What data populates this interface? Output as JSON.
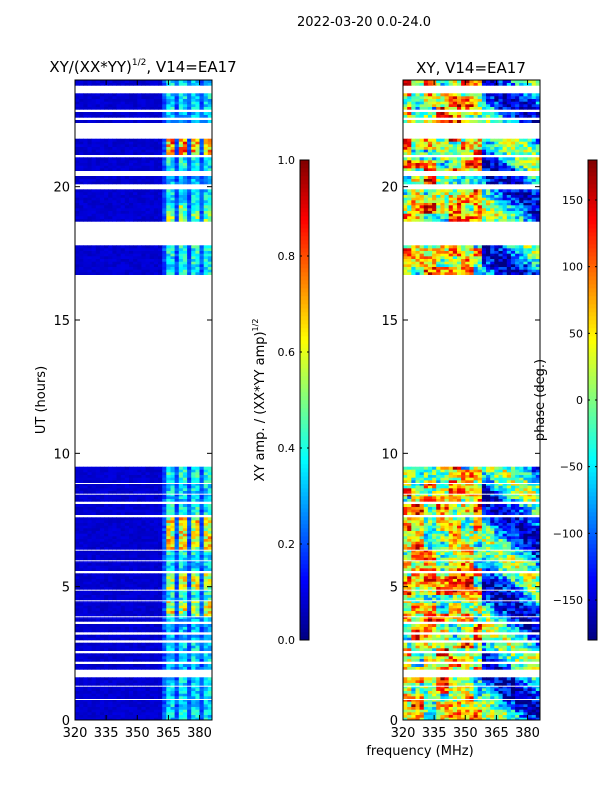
{
  "chart_data": [
    {
      "type": "heatmap",
      "suptitle": "2022-03-20 0.0-24.0",
      "title": "XY/(XX*YY)^1/2, V14=EA17",
      "title_main": "XY/(XX*YY)",
      "title_sup": "1/2",
      "title_tail": ", V14=EA17",
      "ylabel": "UT (hours)",
      "xlim": [
        320,
        386
      ],
      "ylim": [
        0,
        24
      ],
      "xticks": [
        "320",
        "335",
        "350",
        "365",
        "380"
      ],
      "xtick_values": [
        320,
        335,
        350,
        365,
        380
      ],
      "yticks": [
        "0",
        "5",
        "10",
        "15",
        "20"
      ],
      "ytick_values": [
        0,
        5,
        10,
        15,
        20
      ],
      "colorbar": {
        "label": "XY amp. / (XX*YY amp)",
        "label_sup": "1/2",
        "range": [
          0,
          1
        ],
        "ticks": [
          "0.0",
          "0.2",
          "0.4",
          "0.6",
          "0.8",
          "1.0"
        ],
        "tick_values": [
          0,
          0.2,
          0.4,
          0.6,
          0.8,
          1.0
        ]
      },
      "signal_band_mhz": [
        361,
        385
      ],
      "background_amp": 0.06,
      "time_blocks": [
        {
          "start": 23.8,
          "end": 24.0,
          "peak_amp": 0.45
        },
        {
          "start": 22.9,
          "end": 23.5,
          "peak_amp": 0.45
        },
        {
          "start": 22.6,
          "end": 22.8,
          "peak_amp": 0.4
        },
        {
          "start": 22.4,
          "end": 22.5,
          "peak_amp": 0.4
        },
        {
          "start": 21.2,
          "end": 21.8,
          "peak_amp": 0.9
        },
        {
          "start": 20.6,
          "end": 21.1,
          "peak_amp": 0.5
        },
        {
          "start": 20.1,
          "end": 20.4,
          "peak_amp": 0.4
        },
        {
          "start": 19.3,
          "end": 19.9,
          "peak_amp": 0.45
        },
        {
          "start": 18.7,
          "end": 19.3,
          "peak_amp": 0.65
        },
        {
          "start": 16.7,
          "end": 17.8,
          "peak_amp": 0.5
        },
        {
          "start": 8.9,
          "end": 9.5,
          "peak_amp": 0.5
        },
        {
          "start": 8.5,
          "end": 8.85,
          "peak_amp": 0.45
        },
        {
          "start": 8.2,
          "end": 8.45,
          "peak_amp": 0.45
        },
        {
          "start": 7.7,
          "end": 8.1,
          "peak_amp": 0.5
        },
        {
          "start": 6.4,
          "end": 7.6,
          "peak_amp": 0.8
        },
        {
          "start": 6.0,
          "end": 6.35,
          "peak_amp": 0.5
        },
        {
          "start": 5.6,
          "end": 5.95,
          "peak_amp": 0.45
        },
        {
          "start": 4.9,
          "end": 5.5,
          "peak_amp": 0.75
        },
        {
          "start": 4.5,
          "end": 4.85,
          "peak_amp": 0.5
        },
        {
          "start": 3.9,
          "end": 4.45,
          "peak_amp": 0.75
        },
        {
          "start": 3.7,
          "end": 3.85,
          "peak_amp": 0.4
        },
        {
          "start": 3.3,
          "end": 3.6,
          "peak_amp": 0.4
        },
        {
          "start": 3.0,
          "end": 3.2,
          "peak_amp": 0.4
        },
        {
          "start": 2.6,
          "end": 2.9,
          "peak_amp": 0.45
        },
        {
          "start": 2.2,
          "end": 2.5,
          "peak_amp": 0.45
        },
        {
          "start": 1.9,
          "end": 2.1,
          "peak_amp": 0.4
        },
        {
          "start": 1.3,
          "end": 1.6,
          "peak_amp": 0.45
        },
        {
          "start": 0.8,
          "end": 1.25,
          "peak_amp": 0.45
        },
        {
          "start": 0.0,
          "end": 0.75,
          "peak_amp": 0.45
        }
      ]
    },
    {
      "type": "heatmap",
      "title": "XY, V14=EA17",
      "xlabel": "frequency (MHz)",
      "xlim": [
        320,
        386
      ],
      "ylim": [
        0,
        24
      ],
      "xticks": [
        "320",
        "335",
        "350",
        "365",
        "380"
      ],
      "xtick_values": [
        320,
        335,
        350,
        365,
        380
      ],
      "yticks": [
        "0",
        "5",
        "10",
        "15",
        "20"
      ],
      "ytick_values": [
        0,
        5,
        10,
        15,
        20
      ],
      "colorbar": {
        "label": "phase (deg.)",
        "range": [
          -180,
          180
        ],
        "ticks": [
          "−150",
          "−100",
          "−50",
          "0",
          "50",
          "100",
          "150"
        ],
        "tick_values": [
          -150,
          -100,
          -50,
          0,
          50,
          100,
          150
        ]
      }
    }
  ]
}
